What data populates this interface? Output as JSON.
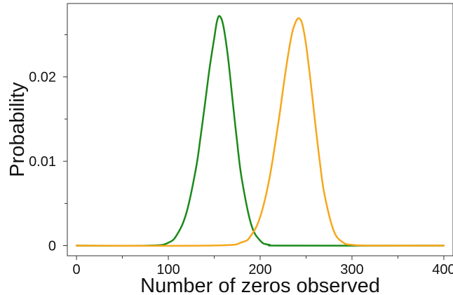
{
  "chart_data": {
    "type": "line",
    "title": "",
    "xlabel": "Number of zeros observed",
    "ylabel": "Probability",
    "xlim": [
      -10,
      410
    ],
    "ylim": [
      -0.0012,
      0.0287
    ],
    "x_ticks": [
      0,
      100,
      200,
      300,
      400
    ],
    "x_tick_labels": [
      "0",
      "100",
      "200",
      "300",
      "400"
    ],
    "y_ticks": [
      0,
      0.01,
      0.02
    ],
    "y_tick_labels": [
      "0",
      "0.01",
      "0.02"
    ],
    "grid": false,
    "legend": "none",
    "series": [
      {
        "color": "#1a8a1a",
        "x": [
          0,
          80,
          100,
          110,
          120,
          130,
          135,
          140,
          145,
          150,
          153,
          156,
          160,
          165,
          170,
          175,
          180,
          190,
          200,
          210,
          230,
          400
        ],
        "values": [
          0,
          1e-05,
          0.00035,
          0.0014,
          0.004,
          0.0091,
          0.0128,
          0.0169,
          0.0211,
          0.0246,
          0.0266,
          0.0272,
          0.026,
          0.0223,
          0.0172,
          0.0122,
          0.0079,
          0.0026,
          0.0006,
          0.0001,
          0.0,
          0
        ]
      },
      {
        "color": "#f5a81c",
        "x": [
          0,
          150,
          180,
          190,
          200,
          210,
          220,
          225,
          230,
          235,
          240,
          243,
          246,
          250,
          255,
          260,
          265,
          270,
          280,
          290,
          300,
          320,
          400
        ],
        "values": [
          0,
          1e-05,
          0.0004,
          0.0012,
          0.0034,
          0.0079,
          0.0147,
          0.0186,
          0.0223,
          0.0253,
          0.0268,
          0.0269,
          0.0262,
          0.0238,
          0.0194,
          0.0145,
          0.0099,
          0.0061,
          0.0018,
          0.0004,
          0.0001,
          0.0,
          0
        ]
      }
    ]
  }
}
